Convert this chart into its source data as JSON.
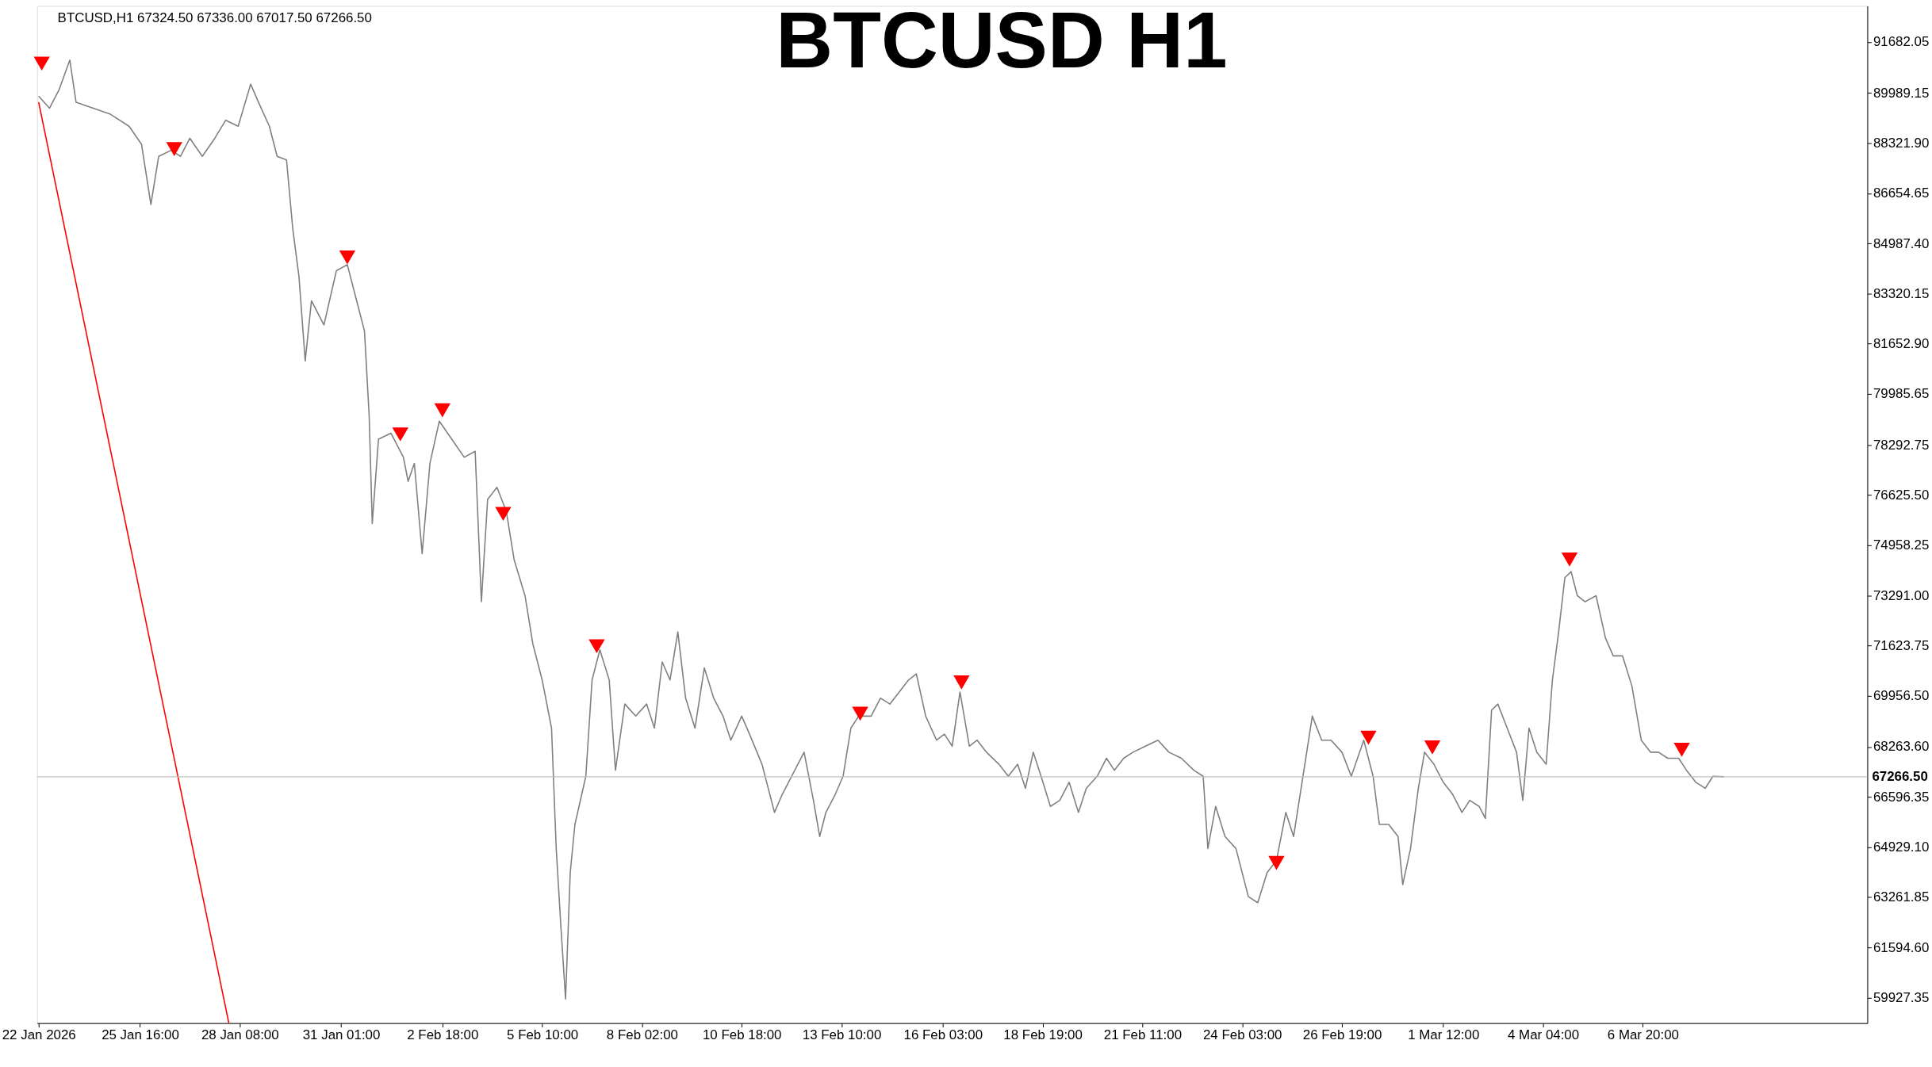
{
  "chart_data": {
    "type": "line",
    "title": "BTCUSD H1",
    "annotations": [
      "BTCUSD,H1  67324.50 67336.00 67017.50 67266.50"
    ],
    "grid": false,
    "xlim": [
      "2026-01-22T22:00",
      "2026-03-12T20:00"
    ],
    "xticks": [
      {
        "value": "2026-01-22T23:00",
        "label": "22 Jan 2026"
      },
      {
        "value": "2026-01-25T16:00",
        "label": "25 Jan 16:00"
      },
      {
        "value": "2026-01-28T08:00",
        "label": "28 Jan 08:00"
      },
      {
        "value": "2026-01-31T01:00",
        "label": "31 Jan 01:00"
      },
      {
        "value": "2026-02-02T18:00",
        "label": "2 Feb 18:00"
      },
      {
        "value": "2026-02-05T10:00",
        "label": "5 Feb 10:00"
      },
      {
        "value": "2026-02-08T02:00",
        "label": "8 Feb 02:00"
      },
      {
        "value": "2026-02-10T18:00",
        "label": "10 Feb 18:00"
      },
      {
        "value": "2026-02-13T10:00",
        "label": "13 Feb 10:00"
      },
      {
        "value": "2026-02-16T03:00",
        "label": "16 Feb 03:00"
      },
      {
        "value": "2026-02-18T19:00",
        "label": "18 Feb 19:00"
      },
      {
        "value": "2026-02-21T11:00",
        "label": "21 Feb 11:00"
      },
      {
        "value": "2026-02-24T03:00",
        "label": "24 Feb 03:00"
      },
      {
        "value": "2026-02-26T19:00",
        "label": "26 Feb 19:00"
      },
      {
        "value": "2026-03-01T12:00",
        "label": "1 Mar 12:00"
      },
      {
        "value": "2026-03-04T04:00",
        "label": "4 Mar 04:00"
      },
      {
        "value": "2026-03-06T20:00",
        "label": "6 Mar 20:00"
      }
    ],
    "ylim": [
      59080,
      92880
    ],
    "yticks": [
      {
        "value": 59927.35,
        "label": "59927.35"
      },
      {
        "value": 61594.6,
        "label": "61594.60"
      },
      {
        "value": 63261.85,
        "label": "63261.85"
      },
      {
        "value": 64929.1,
        "label": "64929.10"
      },
      {
        "value": 66596.35,
        "label": "66596.35"
      },
      {
        "value": 68263.6,
        "label": "68263.60"
      },
      {
        "value": 69956.5,
        "label": "69956.50"
      },
      {
        "value": 71623.75,
        "label": "71623.75"
      },
      {
        "value": 73291,
        "label": "73291.00"
      },
      {
        "value": 74958.25,
        "label": "74958.25"
      },
      {
        "value": 76625.5,
        "label": "76625.50"
      },
      {
        "value": 78292.75,
        "label": "78292.75"
      },
      {
        "value": 79985.65,
        "label": "79985.65"
      },
      {
        "value": 81652.9,
        "label": "81652.90"
      },
      {
        "value": 83320.15,
        "label": "83320.15"
      },
      {
        "value": 84987.4,
        "label": "84987.40"
      },
      {
        "value": 86654.65,
        "label": "86654.65"
      },
      {
        "value": 88321.9,
        "label": "88321.90"
      },
      {
        "value": 89989.15,
        "label": "89989.15"
      },
      {
        "value": 91682.05,
        "label": "91682.05"
      }
    ],
    "ref_lines": [
      {
        "axis": "y",
        "value": 67266.5,
        "label": "67266.50",
        "color": "#c0c0c0"
      }
    ],
    "series": [
      {
        "color": "#808080",
        "x": [
          "2026-01-22T23:00",
          "2026-01-23T06:00",
          "2026-01-23T12:00",
          "2026-01-23T19:00",
          "2026-01-23T23:00",
          "2026-01-24T10:00",
          "2026-01-24T21:00",
          "2026-01-25T09:00",
          "2026-01-25T17:00",
          "2026-01-25T23:00",
          "2026-01-26T04:00",
          "2026-01-26T12:00",
          "2026-01-26T18:00",
          "2026-01-27T00:00",
          "2026-01-27T08:00",
          "2026-01-27T16:00",
          "2026-01-27T23:00",
          "2026-01-28T07:00",
          "2026-01-28T15:00",
          "2026-01-28T20:00",
          "2026-01-29T03:00",
          "2026-01-29T08:00",
          "2026-01-29T14:00",
          "2026-01-29T18:00",
          "2026-01-29T22:00",
          "2026-01-30T02:00",
          "2026-01-30T06:00",
          "2026-01-30T14:00",
          "2026-01-30T22:00",
          "2026-01-31T05:00",
          "2026-01-31T11:00",
          "2026-01-31T16:00",
          "2026-01-31T19:00",
          "2026-01-31T21:00",
          "2026-02-01T01:00",
          "2026-02-01T09:00",
          "2026-02-01T17:00",
          "2026-02-01T20:00",
          "2026-02-02T00:00",
          "2026-02-02T05:00",
          "2026-02-02T10:00",
          "2026-02-02T16:00",
          "2026-02-03T00:00",
          "2026-02-03T08:00",
          "2026-02-03T15:00",
          "2026-02-03T19:00",
          "2026-02-03T23:00",
          "2026-02-04T05:00",
          "2026-02-04T11:00",
          "2026-02-04T16:00",
          "2026-02-04T23:00",
          "2026-02-05T04:00",
          "2026-02-05T10:00",
          "2026-02-05T16:00",
          "2026-02-05T19:00",
          "2026-02-05T22:00",
          "2026-02-06T01:00",
          "2026-02-06T04:00",
          "2026-02-06T07:00",
          "2026-02-06T14:00",
          "2026-02-06T18:00",
          "2026-02-06T23:00",
          "2026-02-07T05:00",
          "2026-02-07T09:00",
          "2026-02-07T15:00",
          "2026-02-07T22:00",
          "2026-02-08T05:00",
          "2026-02-08T10:00",
          "2026-02-08T15:00",
          "2026-02-08T20:00",
          "2026-02-09T01:00",
          "2026-02-09T06:00",
          "2026-02-09T12:00",
          "2026-02-09T18:00",
          "2026-02-10T00:00",
          "2026-02-10T06:00",
          "2026-02-10T11:00",
          "2026-02-10T18:00",
          "2026-02-10T23:00",
          "2026-02-11T07:00",
          "2026-02-11T15:00",
          "2026-02-11T20:00",
          "2026-02-12T02:00",
          "2026-02-12T10:00",
          "2026-02-12T16:00",
          "2026-02-12T20:00",
          "2026-02-13T00:00",
          "2026-02-13T06:00",
          "2026-02-13T11:00",
          "2026-02-13T16:00",
          "2026-02-13T21:00",
          "2026-02-14T05:00",
          "2026-02-14T11:00",
          "2026-02-14T17:00",
          "2026-02-14T23:00",
          "2026-02-15T05:00",
          "2026-02-15T10:00",
          "2026-02-15T16:00",
          "2026-02-15T23:00",
          "2026-02-16T04:00",
          "2026-02-16T09:00",
          "2026-02-16T14:00",
          "2026-02-16T20:00",
          "2026-02-17T01:00",
          "2026-02-17T07:00",
          "2026-02-17T15:00",
          "2026-02-17T21:00",
          "2026-02-18T03:00",
          "2026-02-18T08:00",
          "2026-02-18T13:00",
          "2026-02-18T18:00",
          "2026-02-19T00:00",
          "2026-02-19T06:00",
          "2026-02-19T12:00",
          "2026-02-19T18:00",
          "2026-02-19T23:00",
          "2026-02-20T06:00",
          "2026-02-20T12:00",
          "2026-02-20T17:00",
          "2026-02-20T23:00",
          "2026-02-21T05:00",
          "2026-02-21T13:00",
          "2026-02-21T21:00",
          "2026-02-22T04:00",
          "2026-02-22T12:00",
          "2026-02-22T20:00",
          "2026-02-23T02:00",
          "2026-02-23T05:00",
          "2026-02-23T10:00",
          "2026-02-23T16:00",
          "2026-02-23T23:00",
          "2026-02-24T07:00",
          "2026-02-24T13:00",
          "2026-02-24T19:00",
          "2026-02-25T01:00",
          "2026-02-25T07:00",
          "2026-02-25T12:00",
          "2026-02-25T18:00",
          "2026-02-26T00:00",
          "2026-02-26T06:00",
          "2026-02-26T12:00",
          "2026-02-26T19:00",
          "2026-02-27T01:00",
          "2026-02-27T09:00",
          "2026-02-27T15:00",
          "2026-02-27T19:00",
          "2026-02-28T01:00",
          "2026-02-28T07:00",
          "2026-02-28T10:00",
          "2026-02-28T15:00",
          "2026-02-28T20:00",
          "2026-03-01T00:00",
          "2026-03-01T06:00",
          "2026-03-01T12:00",
          "2026-03-01T18:00",
          "2026-03-02T00:00",
          "2026-03-02T05:00",
          "2026-03-02T11:00",
          "2026-03-02T15:00",
          "2026-03-02T19:00",
          "2026-03-02T23:00",
          "2026-03-03T05:00",
          "2026-03-03T11:00",
          "2026-03-03T15:00",
          "2026-03-03T19:00",
          "2026-03-04T00:00",
          "2026-03-04T06:00",
          "2026-03-04T10:00",
          "2026-03-04T14:00",
          "2026-03-04T18:00",
          "2026-03-04T22:00",
          "2026-03-05T02:00",
          "2026-03-05T07:00",
          "2026-03-05T14:00",
          "2026-03-05T20:00",
          "2026-03-06T01:00",
          "2026-03-06T07:00",
          "2026-03-06T13:00",
          "2026-03-06T19:00",
          "2026-03-07T01:00",
          "2026-03-07T06:00",
          "2026-03-07T12:00",
          "2026-03-07T19:00",
          "2026-03-08T00:00",
          "2026-03-08T06:00",
          "2026-03-08T12:00",
          "2026-03-08T17:00",
          "2026-03-09T00:00"
        ],
        "values": [
          89882,
          89482,
          90082,
          91082,
          89682,
          89482,
          89282,
          88882,
          88282,
          86282,
          87882,
          88082,
          87882,
          88482,
          87882,
          88482,
          89082,
          88882,
          90282,
          89682,
          88882,
          87882,
          87762,
          85482,
          83882,
          81082,
          83082,
          82282,
          84082,
          84282,
          83082,
          82082,
          79282,
          75682,
          78482,
          78682,
          77882,
          77082,
          77682,
          74682,
          77682,
          79082,
          78482,
          77882,
          78082,
          73082,
          76482,
          76882,
          76082,
          74482,
          73282,
          71682,
          70482,
          68882,
          64882,
          62282,
          59882,
          64082,
          65682,
          67282,
          70482,
          71482,
          70482,
          67482,
          69682,
          69282,
          69682,
          68882,
          71082,
          70482,
          72082,
          69882,
          68882,
          70882,
          69882,
          69282,
          68482,
          69282,
          68682,
          67682,
          66082,
          66682,
          67282,
          68082,
          66482,
          65282,
          66082,
          66682,
          67282,
          68882,
          69282,
          69282,
          69882,
          69682,
          70082,
          70482,
          70682,
          69282,
          68482,
          68682,
          68282,
          70082,
          68282,
          68482,
          68082,
          67682,
          67282,
          67682,
          66882,
          68082,
          67282,
          66282,
          66482,
          67082,
          66082,
          66882,
          67282,
          67882,
          67482,
          67882,
          68082,
          68282,
          68482,
          68082,
          67882,
          67482,
          67282,
          64882,
          66282,
          65282,
          64882,
          63282,
          63082,
          64082,
          64482,
          66082,
          65282,
          67282,
          69282,
          68482,
          68482,
          68082,
          67282,
          68482,
          67282,
          65682,
          65682,
          65282,
          63682,
          64882,
          66882,
          68082,
          67682,
          67082,
          66682,
          66082,
          66482,
          66282,
          65882,
          69482,
          69682,
          68882,
          68082,
          66482,
          68882,
          68082,
          67682,
          70482,
          72082,
          73882,
          74082,
          73282,
          73082,
          73282,
          71882,
          71282,
          71282,
          70282,
          68482,
          68082,
          68082,
          67882,
          67882,
          67482,
          67082,
          66882,
          67282,
          67266.5
        ]
      },
      {
        "type": "scatter",
        "marker": "triangle",
        "color": "#ff0000",
        "x": [
          "2026-01-23T01:00",
          "2026-01-26T14:00",
          "2026-01-31T05:00",
          "2026-02-01T15:00",
          "2026-02-02T18:00",
          "2026-02-04T09:00",
          "2026-02-06T21:00",
          "2026-02-13T22:00",
          "2026-02-16T15:00",
          "2026-02-25T01:00",
          "2026-02-27T12:00",
          "2026-03-01T05:00",
          "2026-03-04T21:00",
          "2026-03-07T21:00"
        ],
        "values": [
          90962,
          88122,
          84522,
          78642,
          79442,
          76002,
          71602,
          69362,
          70402,
          64402,
          68562,
          68242,
          74482,
          68162
        ]
      },
      {
        "type": "line",
        "color": "#ff0000",
        "x": [
          "2026-01-22T23:00",
          "2026-01-28T01:00"
        ],
        "values": [
          89682,
          59082
        ]
      }
    ]
  }
}
